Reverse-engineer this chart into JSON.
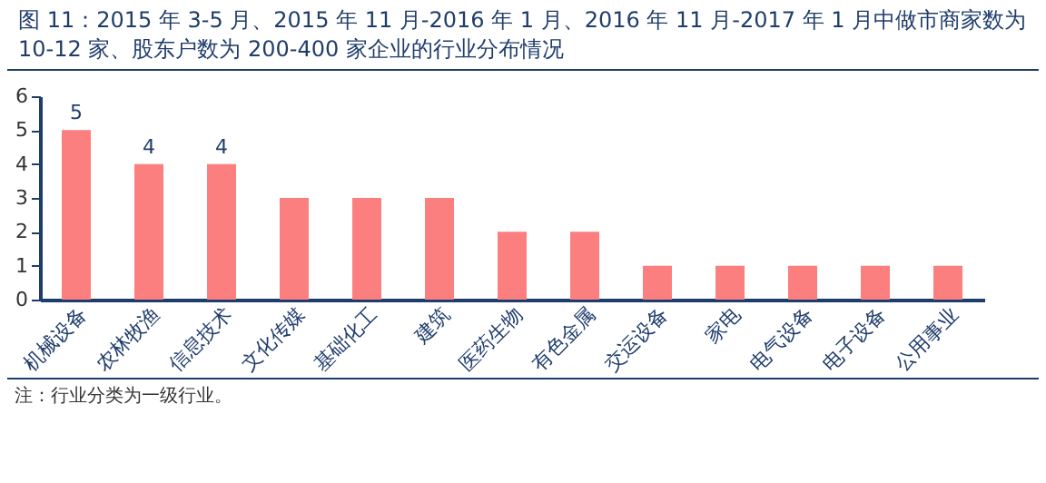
{
  "chart_data": {
    "type": "bar",
    "title": "图 11：2015 年 3-5 月、2015 年 11 月-2016 年 1 月、2016 年 11 月-2017 年 1 月中做市商家数为 10-12 家、股东户数为 200-400 家企业的行业分布情况",
    "categories": [
      "机械设备",
      "农林牧渔",
      "信息技术",
      "文化传媒",
      "基础化工",
      "建筑",
      "医药生物",
      "有色金属",
      "交运设备",
      "家电",
      "电气设备",
      "电子设备",
      "公用事业"
    ],
    "values": [
      5,
      4,
      4,
      3,
      3,
      3,
      2,
      2,
      1,
      1,
      1,
      1,
      1
    ],
    "value_labels": [
      "5",
      "4",
      "4",
      null,
      null,
      null,
      null,
      null,
      null,
      null,
      null,
      null,
      null
    ],
    "color": "#fc7f7f",
    "ylim": [
      0,
      6
    ],
    "yticks": [
      0,
      1,
      2,
      3,
      4,
      5,
      6
    ],
    "grid": false,
    "annotations": [
      "注：行业分类为一级行业。"
    ]
  }
}
